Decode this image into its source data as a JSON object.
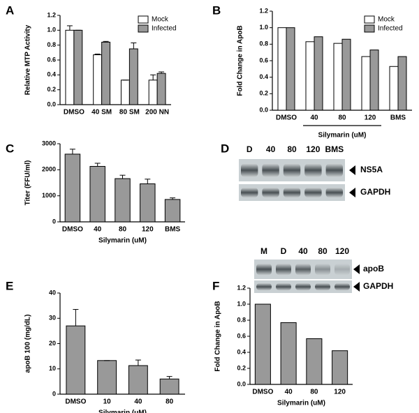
{
  "chart_data": [
    {
      "type": "bar",
      "panel_label": "A",
      "y_label": "Relative MTP Activity",
      "categories": [
        "DMSO",
        "40 SM",
        "80 SM",
        "200 NN"
      ],
      "series": [
        {
          "name": "Mock",
          "color": "#ffffff",
          "values": [
            1.0,
            0.67,
            0.33,
            0.33
          ],
          "errors": [
            0.06,
            0.01,
            0,
            0.07
          ]
        },
        {
          "name": "Infected",
          "color": "#999999",
          "values": [
            1.0,
            0.84,
            0.75,
            0.42
          ],
          "errors": [
            0,
            0.01,
            0.08,
            0.02
          ]
        }
      ],
      "ylim": [
        0,
        1.2
      ],
      "yticks": [
        {
          "value": 0,
          "label": "0.0"
        },
        0.2,
        0.4,
        0.6,
        0.8,
        {
          "value": 1,
          "label": "1.0"
        },
        1.2
      ],
      "legend": "top-right"
    },
    {
      "type": "bar",
      "panel_label": "B",
      "y_label": "Fold Change in ApoB",
      "x_label": "Silymarin (uM)",
      "categories": [
        "DMSO",
        "40",
        "80",
        "120",
        "BMS"
      ],
      "series": [
        {
          "name": "Mock",
          "color": "#ffffff",
          "values": [
            1.0,
            0.83,
            0.81,
            0.65,
            0.53
          ]
        },
        {
          "name": "Infected",
          "color": "#999999",
          "values": [
            1.0,
            0.89,
            0.86,
            0.73,
            0.65
          ]
        }
      ],
      "ylim": [
        0,
        1.2
      ],
      "yticks": [
        {
          "value": 0,
          "label": "0.0"
        },
        0.2,
        0.4,
        0.6,
        0.8,
        {
          "value": 1,
          "label": "1.0"
        },
        1.2
      ],
      "legend": "top-right"
    },
    {
      "type": "bar",
      "panel_label": "C",
      "y_label": "Titer (FFU/ml)",
      "x_label": "Silymarin (uM)",
      "categories": [
        "DMSO",
        "40",
        "80",
        "120",
        "BMS"
      ],
      "values": [
        2600,
        2130,
        1660,
        1460,
        860
      ],
      "errors": [
        190,
        120,
        130,
        180,
        60
      ],
      "color": "#999999",
      "ylim": [
        0,
        3000
      ],
      "yticks": [
        0,
        1000,
        2000,
        3000
      ]
    },
    {
      "type": "bar",
      "panel_label": "E",
      "y_label": "apoB 100 (mg/dL)",
      "x_label": "Silymarin (uM)",
      "categories": [
        "DMSO",
        "10",
        "40",
        "80"
      ],
      "values": [
        27,
        13.3,
        11.3,
        6
      ],
      "errors": [
        6.5,
        0,
        2.2,
        1
      ],
      "color": "#999999",
      "ylim": [
        0,
        40
      ],
      "yticks": [
        0,
        10,
        20,
        30,
        40
      ]
    },
    {
      "type": "bar",
      "panel_label": "F",
      "y_label": "Fold Change in ApoB",
      "x_label": "Silymarin (uM)",
      "categories": [
        "DMSO",
        "40",
        "80",
        "120"
      ],
      "values": [
        1.0,
        0.77,
        0.57,
        0.42
      ],
      "color": "#999999",
      "ylim": [
        0,
        1.2
      ],
      "yticks": [
        {
          "value": 0,
          "label": "0.0"
        },
        0.2,
        0.4,
        0.6,
        0.8,
        {
          "value": 1,
          "label": "1.0"
        },
        1.2
      ]
    }
  ],
  "blots": [
    {
      "panel_label": "D",
      "lanes": [
        "D",
        "40",
        "80",
        "120",
        "BMS"
      ],
      "bands": [
        "NS5A",
        "GAPDH"
      ]
    },
    {
      "lanes": [
        "M",
        "D",
        "40",
        "80",
        "120"
      ],
      "bands": [
        "apoB",
        "GAPDH"
      ]
    }
  ]
}
